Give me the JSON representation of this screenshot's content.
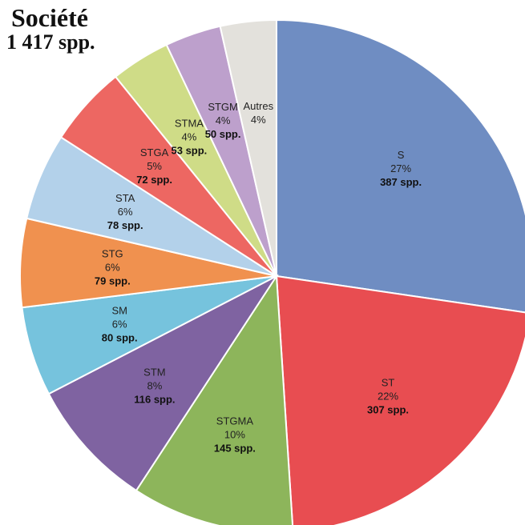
{
  "header": {
    "title": "Société",
    "subtitle": "1 417 spp."
  },
  "chart_data": {
    "type": "pie",
    "title": "Société",
    "subtitle": "1 417 spp.",
    "total": "1 417 spp.",
    "start": "12 o'clock",
    "direction": "clockwise",
    "slices": [
      {
        "label": "S",
        "percent": "27%",
        "count": "387 spp.",
        "value": 387,
        "color": "#6f8dc2"
      },
      {
        "label": "ST",
        "percent": "22%",
        "count": "307 spp.",
        "value": 307,
        "color": "#e84d51"
      },
      {
        "label": "STGMA",
        "percent": "10%",
        "count": "145 spp.",
        "value": 145,
        "color": "#8db55b"
      },
      {
        "label": "STM",
        "percent": "8%",
        "count": "116 spp.",
        "value": 116,
        "color": "#7f63a1"
      },
      {
        "label": "SM",
        "percent": "6%",
        "count": "80 spp.",
        "value": 80,
        "color": "#76c3dd"
      },
      {
        "label": "STG",
        "percent": "6%",
        "count": "79 spp.",
        "value": 79,
        "color": "#f0914f"
      },
      {
        "label": "STA",
        "percent": "6%",
        "count": "78 spp.",
        "value": 78,
        "color": "#b3d1ea"
      },
      {
        "label": "STGA",
        "percent": "5%",
        "count": "72 spp.",
        "value": 72,
        "color": "#ed6762"
      },
      {
        "label": "STMA",
        "percent": "4%",
        "count": "53 spp.",
        "value": 53,
        "color": "#cfdc87"
      },
      {
        "label": "STGM",
        "percent": "4%",
        "count": "50 spp.",
        "value": 50,
        "color": "#bda0cc"
      },
      {
        "label": "Autres",
        "percent": "4%",
        "count": "",
        "value": 50,
        "color": "#e3e1dc"
      }
    ]
  }
}
